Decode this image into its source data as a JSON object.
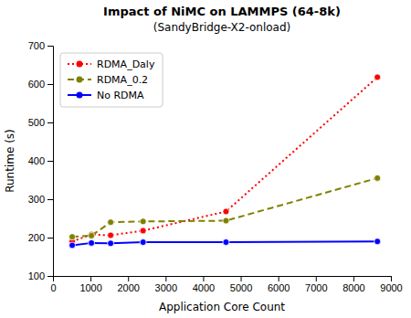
{
  "chart_data": {
    "type": "line",
    "title": "Impact of NiMC on LAMMPS (64-8k)",
    "subtitle": "(SandyBridge-X2-onload)",
    "x_label": "Application Core Count",
    "y_label": "Runtime (s)",
    "x": [
      512,
      1024,
      1536,
      2400,
      4608,
      8640
    ],
    "xlim": [
      0,
      9000
    ],
    "ylim": [
      100,
      700
    ],
    "xticks": [
      0,
      1000,
      2000,
      3000,
      4000,
      5000,
      6000,
      7000,
      8000,
      9000
    ],
    "yticks": [
      100,
      200,
      300,
      400,
      500,
      600,
      700
    ],
    "grid": false,
    "legend": "upper left",
    "series": [
      {
        "name": "RDMA_Daly",
        "color": "#ff0000",
        "line_style": "dotted",
        "marker": "circle",
        "values": [
          190,
          208,
          206,
          218,
          268,
          618
        ]
      },
      {
        "name": "RDMA_0.2",
        "color": "#808000",
        "line_style": "dashed",
        "marker": "circle",
        "values": [
          202,
          205,
          240,
          242,
          244,
          355
        ]
      },
      {
        "name": "No RDMA",
        "color": "#0000ff",
        "line_style": "solid",
        "marker": "circle",
        "values": [
          180,
          186,
          185,
          188,
          188,
          190
        ]
      }
    ]
  }
}
